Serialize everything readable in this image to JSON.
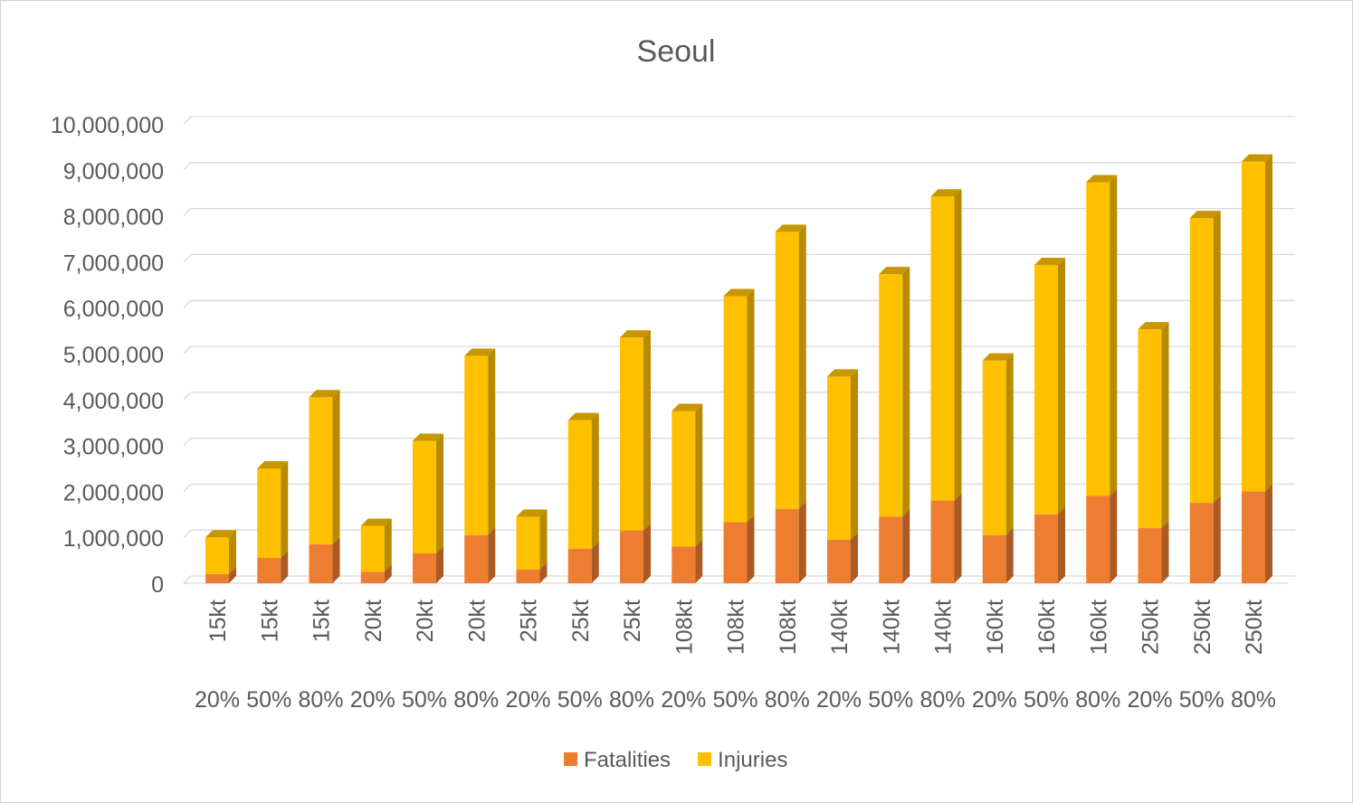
{
  "chart_data": {
    "type": "bar",
    "stacked": true,
    "three_d": true,
    "title": "Seoul",
    "xlabel": "",
    "ylabel": "",
    "ylim": [
      0,
      10000000
    ],
    "y_tick_step": 1000000,
    "y_tick_labels": [
      "0",
      "1,000,000",
      "2,000,000",
      "3,000,000",
      "4,000,000",
      "5,000,000",
      "6,000,000",
      "7,000,000",
      "8,000,000",
      "9,000,000",
      "10,000,000"
    ],
    "grid": true,
    "legend_position": "bottom",
    "categories": [
      {
        "yield": "15kt",
        "pct": "20%"
      },
      {
        "yield": "15kt",
        "pct": "50%"
      },
      {
        "yield": "15kt",
        "pct": "80%"
      },
      {
        "yield": "20kt",
        "pct": "20%"
      },
      {
        "yield": "20kt",
        "pct": "50%"
      },
      {
        "yield": "20kt",
        "pct": "80%"
      },
      {
        "yield": "25kt",
        "pct": "20%"
      },
      {
        "yield": "25kt",
        "pct": "50%"
      },
      {
        "yield": "25kt",
        "pct": "80%"
      },
      {
        "yield": "108kt",
        "pct": "20%"
      },
      {
        "yield": "108kt",
        "pct": "50%"
      },
      {
        "yield": "108kt",
        "pct": "80%"
      },
      {
        "yield": "140kt",
        "pct": "20%"
      },
      {
        "yield": "140kt",
        "pct": "50%"
      },
      {
        "yield": "140kt",
        "pct": "80%"
      },
      {
        "yield": "160kt",
        "pct": "20%"
      },
      {
        "yield": "160kt",
        "pct": "50%"
      },
      {
        "yield": "160kt",
        "pct": "80%"
      },
      {
        "yield": "250kt",
        "pct": "20%"
      },
      {
        "yield": "250kt",
        "pct": "50%"
      },
      {
        "yield": "250kt",
        "pct": "80%"
      }
    ],
    "series": [
      {
        "name": "Fatalities",
        "color": "#ED7D31",
        "values": [
          200000,
          550000,
          850000,
          250000,
          650000,
          1050000,
          300000,
          750000,
          1150000,
          800000,
          1330000,
          1620000,
          950000,
          1450000,
          1800000,
          1050000,
          1500000,
          1900000,
          1200000,
          1750000,
          2000000
        ]
      },
      {
        "name": "Injuries",
        "color": "#FFC000",
        "values": [
          800000,
          1950000,
          3200000,
          1000000,
          2450000,
          3900000,
          1150000,
          2800000,
          4200000,
          2950000,
          4920000,
          6030000,
          3550000,
          5280000,
          6620000,
          3800000,
          5430000,
          6830000,
          4330000,
          6200000,
          7180000
        ]
      }
    ]
  }
}
